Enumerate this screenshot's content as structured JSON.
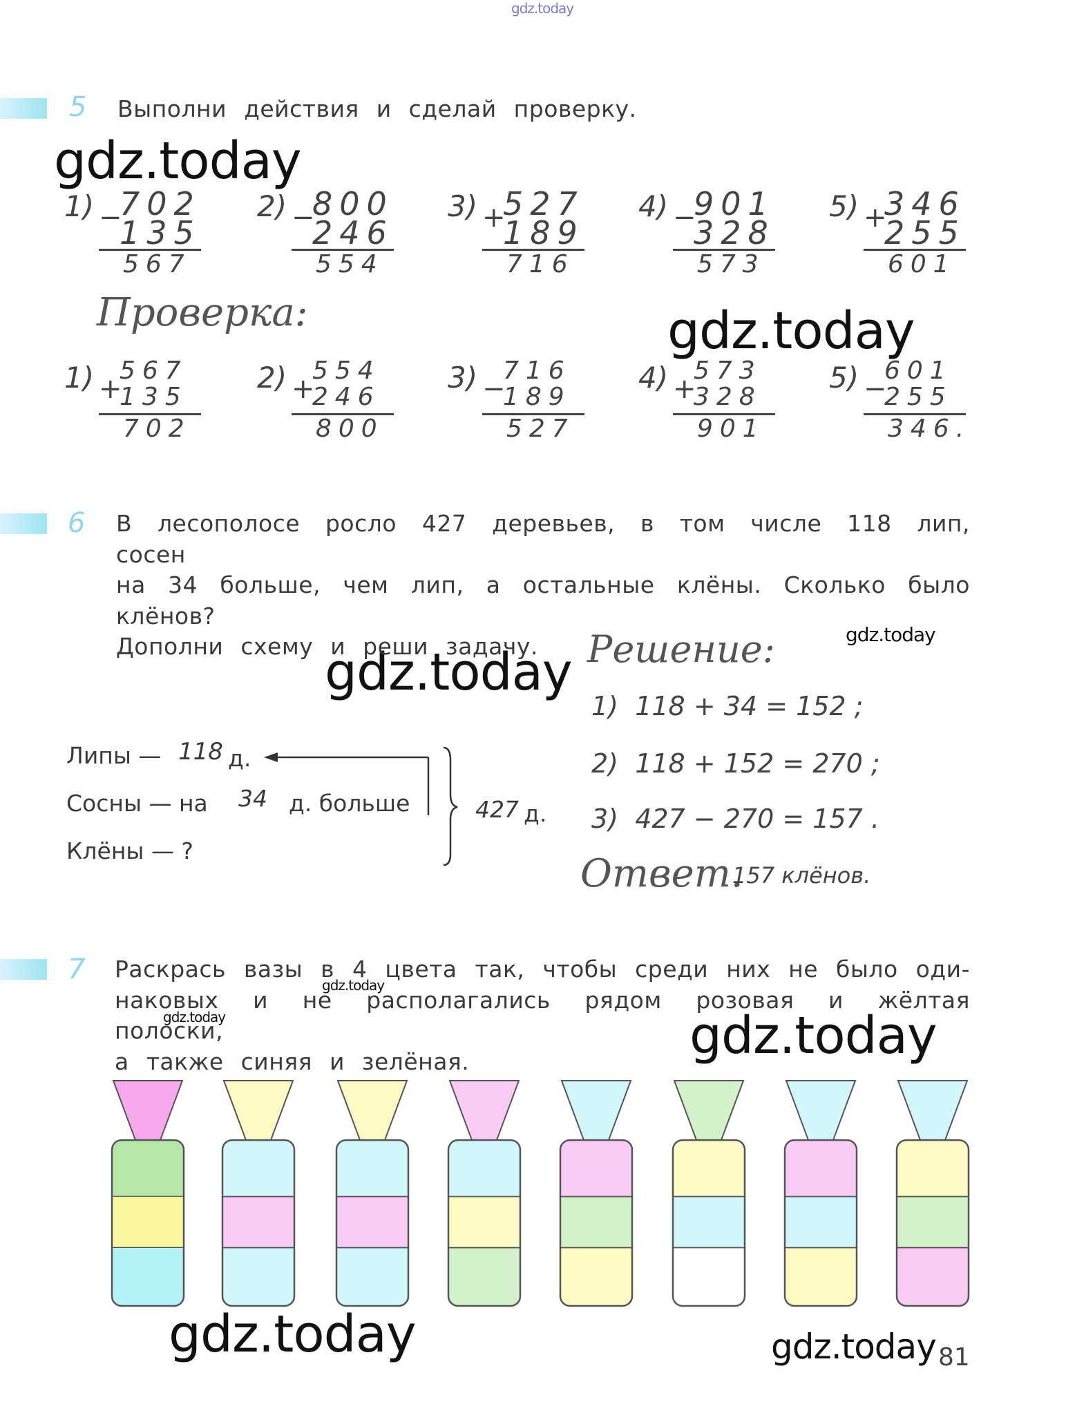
{
  "watermark": "gdz.today",
  "page_number": "81",
  "task5": {
    "number": "5",
    "text": "Выполни действия и сделай проверку.",
    "examples": [
      {
        "label": "1)",
        "op": "−",
        "a": "702",
        "b": "135",
        "result": "567"
      },
      {
        "label": "2)",
        "op": "−",
        "a": "800",
        "b": "246",
        "result": "554"
      },
      {
        "label": "3)",
        "op": "+",
        "a": "527",
        "b": "189",
        "result": "716"
      },
      {
        "label": "4)",
        "op": "−",
        "a": "901",
        "b": "328",
        "result": "573"
      },
      {
        "label": "5)",
        "op": "+",
        "a": "346",
        "b": "255",
        "result": "601"
      }
    ],
    "check_title": "Проверка:",
    "checks": [
      {
        "label": "1)",
        "op": "+",
        "a": "567",
        "b": "135",
        "result": "702"
      },
      {
        "label": "2)",
        "op": "+",
        "a": "554",
        "b": "246",
        "result": "800"
      },
      {
        "label": "3)",
        "op": "−",
        "a": "716",
        "b": "189",
        "result": "527"
      },
      {
        "label": "4)",
        "op": "+",
        "a": "573",
        "b": "328",
        "result": "901"
      },
      {
        "label": "5)",
        "op": "−",
        "a": "601",
        "b": "255",
        "result": "346."
      }
    ]
  },
  "task6": {
    "number": "6",
    "lines": [
      "В лесополосе росло 427 деревьев, в том числе 118 лип, сосен",
      "на 34 больше, чем лип, а остальные клёны. Сколько было",
      "клёнов?",
      "Дополни схему и реши задачу."
    ],
    "scheme": {
      "lipy": "Липы —",
      "lipy_value": "118",
      "unit": "д.",
      "sosny": "Сосны — на",
      "sosny_value": "34",
      "sosny_suffix": "д. больше",
      "kleny": "Клёны — ?",
      "total_value": "427",
      "total_unit": "д."
    },
    "solution_title": "Решение:",
    "solution": [
      {
        "label": "1)",
        "expr": "118 + 34 = 152 ;"
      },
      {
        "label": "2)",
        "expr": "118 + 152 = 270 ;"
      },
      {
        "label": "3)",
        "expr": "427 − 270 = 157 ."
      }
    ],
    "answer_label": "Ответ.",
    "answer": "157 клёнов."
  },
  "task7": {
    "number": "7",
    "lines": [
      "Раскрась вазы в 4 цвета так, чтобы среди них не было оди-",
      "наковых и не располагались рядом розовая и жёлтая полоски,",
      "а также синяя и зелёная."
    ],
    "colors": {
      "pink": "#f7a8ee",
      "yellow": "#fbf7a0",
      "cyan": "#b4f2f7",
      "green": "#b5e8a8",
      "white": "#ffffff"
    },
    "vases": [
      {
        "neck": "pink",
        "stripes": [
          "green",
          "yellow",
          "cyan"
        ],
        "solid": true
      },
      {
        "neck": "yellow",
        "stripes": [
          "cyan",
          "pink",
          "cyan"
        ],
        "solid": false
      },
      {
        "neck": "yellow",
        "stripes": [
          "cyan",
          "pink",
          "cyan"
        ],
        "solid": false
      },
      {
        "neck": "pink",
        "stripes": [
          "cyan",
          "yellow",
          "green"
        ],
        "solid": false
      },
      {
        "neck": "cyan",
        "stripes": [
          "pink",
          "green",
          "yellow"
        ],
        "solid": false
      },
      {
        "neck": "green",
        "stripes": [
          "yellow",
          "cyan",
          "white"
        ],
        "solid": false
      },
      {
        "neck": "cyan",
        "stripes": [
          "pink",
          "cyan",
          "yellow"
        ],
        "solid": false
      },
      {
        "neck": "cyan",
        "stripes": [
          "yellow",
          "green",
          "pink"
        ],
        "solid": false
      }
    ]
  }
}
